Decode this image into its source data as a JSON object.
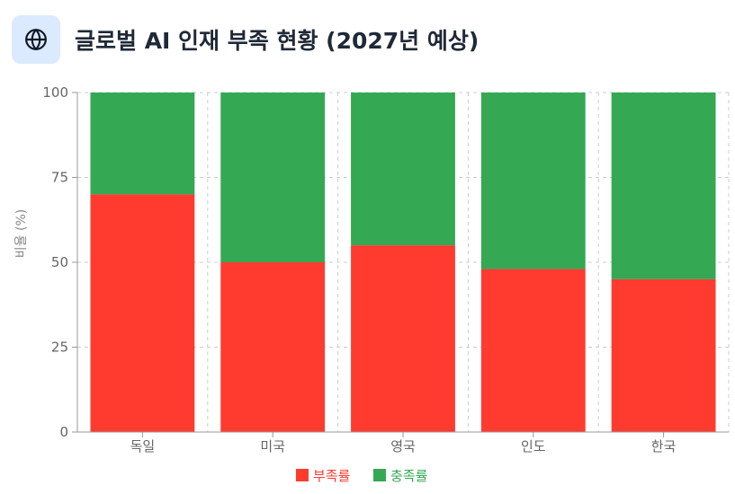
{
  "header": {
    "title": "글로벌 AI 인재 부족 현황 (2027년 예상)",
    "icon": "globe-icon"
  },
  "chart_data": {
    "type": "bar",
    "stacked": true,
    "categories": [
      "독일",
      "미국",
      "영국",
      "인도",
      "한국"
    ],
    "series": [
      {
        "name": "부족률",
        "color": "#ff3b30",
        "values": [
          70,
          50,
          55,
          48,
          45
        ]
      },
      {
        "name": "충족률",
        "color": "#34a853",
        "values": [
          30,
          50,
          45,
          52,
          55
        ]
      }
    ],
    "ylabel": "비율 (%)",
    "xlabel": "",
    "ylim": [
      0,
      100
    ],
    "yticks": [
      0,
      25,
      50,
      75,
      100
    ],
    "grid": true,
    "legend": "bottom-center"
  }
}
